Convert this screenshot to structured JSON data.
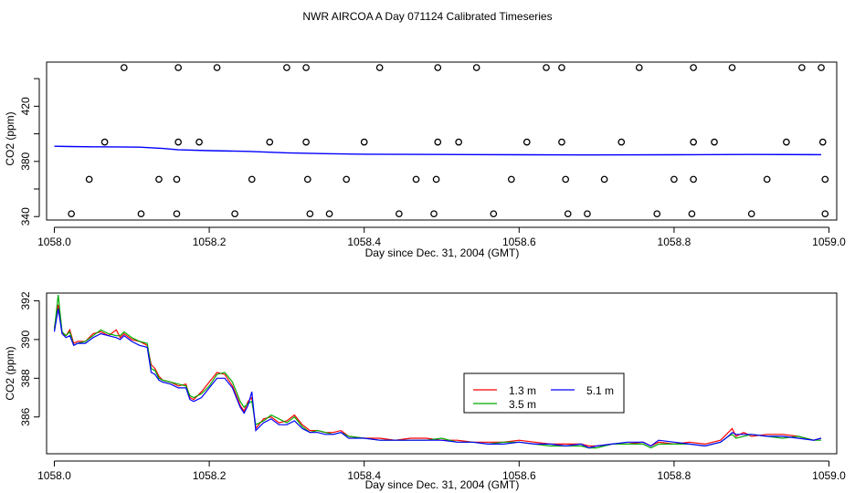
{
  "title": "NWR AIRCOA A  Day 071124  Calibrated Timeseries",
  "chart_data": [
    {
      "type": "scatter",
      "xlabel": "Day since Dec. 31, 2004 (GMT)",
      "ylabel": "CO2 (ppm)",
      "xlim": [
        1057.99,
        1059.01
      ],
      "ylim": [
        337.5,
        452
      ],
      "x_ticks": [
        1058.0,
        1058.2,
        1058.4,
        1058.6,
        1058.8,
        1059.0
      ],
      "x_tick_labels": [
        "1058.0",
        "1058.2",
        "1058.4",
        "1058.6",
        "1058.8",
        "1059.0"
      ],
      "y_ticks": [
        340,
        360,
        380,
        400,
        420,
        440
      ],
      "y_tick_labels": [
        "340",
        "",
        "380",
        "",
        "420",
        ""
      ],
      "line": {
        "color": "#0000ff",
        "x": [
          1058.0,
          1058.02,
          1058.05,
          1058.08,
          1058.11,
          1058.14,
          1058.16,
          1058.2,
          1058.25,
          1058.3,
          1058.35,
          1058.4,
          1058.5,
          1058.6,
          1058.7,
          1058.8,
          1058.9,
          1058.99
        ],
        "y": [
          391,
          390.8,
          390.6,
          390.5,
          390.3,
          389.4,
          388.4,
          387.8,
          387.3,
          386.2,
          385.6,
          385.2,
          385.0,
          384.8,
          384.7,
          384.8,
          385.0,
          384.9
        ]
      },
      "circles": {
        "x": [
          1058.09,
          1058.16,
          1058.21,
          1058.3,
          1058.325,
          1058.42,
          1058.495,
          1058.545,
          1058.635,
          1058.655,
          1058.755,
          1058.825,
          1058.875,
          1058.965,
          1058.99,
          1058.065,
          1058.16,
          1058.187,
          1058.278,
          1058.325,
          1058.4,
          1058.495,
          1058.522,
          1058.61,
          1058.655,
          1058.732,
          1058.825,
          1058.852,
          1058.945,
          1058.992,
          1058.045,
          1058.135,
          1058.158,
          1058.255,
          1058.327,
          1058.377,
          1058.467,
          1058.493,
          1058.59,
          1058.66,
          1058.71,
          1058.8,
          1058.825,
          1058.92,
          1058.995,
          1058.022,
          1058.112,
          1058.158,
          1058.233,
          1058.33,
          1058.355,
          1058.445,
          1058.49,
          1058.567,
          1058.663,
          1058.688,
          1058.778,
          1058.823,
          1058.9,
          1058.995
        ],
        "y": [
          448,
          448,
          448,
          448,
          448,
          448,
          448,
          448,
          448,
          448,
          448,
          448,
          448,
          448,
          448,
          394,
          394,
          394,
          394,
          394,
          394,
          394,
          394,
          394,
          394,
          394,
          394,
          394,
          394,
          394,
          367,
          367,
          367,
          367,
          367,
          367,
          367,
          367,
          367,
          367,
          367,
          367,
          367,
          367,
          367,
          342,
          342,
          342,
          342,
          342,
          342,
          342,
          342,
          342,
          342,
          342,
          342,
          342,
          342,
          342
        ]
      }
    },
    {
      "type": "line",
      "xlabel": "Day since Dec. 31, 2004 (GMT)",
      "ylabel": "CO2 (ppm)",
      "xlim": [
        1057.99,
        1059.01
      ],
      "ylim": [
        384.1,
        392.4
      ],
      "x_ticks": [
        1058.0,
        1058.2,
        1058.4,
        1058.6,
        1058.8,
        1059.0
      ],
      "x_tick_labels": [
        "1058.0",
        "1058.2",
        "1058.4",
        "1058.6",
        "1058.8",
        "1059.0"
      ],
      "y_ticks": [
        386,
        388,
        390,
        392
      ],
      "y_tick_labels": [
        "386",
        "388",
        "390",
        "392"
      ],
      "series": [
        {
          "name": "1.3 m",
          "color": "#ff0000",
          "x": [
            1058.0,
            1058.005,
            1058.01,
            1058.015,
            1058.02,
            1058.025,
            1058.03,
            1058.04,
            1058.05,
            1058.06,
            1058.07,
            1058.08,
            1058.085,
            1058.09,
            1058.1,
            1058.11,
            1058.12,
            1058.125,
            1058.13,
            1058.135,
            1058.14,
            1058.15,
            1058.16,
            1058.17,
            1058.175,
            1058.18,
            1058.19,
            1058.2,
            1058.21,
            1058.22,
            1058.23,
            1058.24,
            1058.245,
            1058.25,
            1058.255,
            1058.26,
            1058.27,
            1058.28,
            1058.29,
            1058.3,
            1058.31,
            1058.32,
            1058.33,
            1058.34,
            1058.35,
            1058.36,
            1058.37,
            1058.38,
            1058.4,
            1058.42,
            1058.44,
            1058.46,
            1058.48,
            1058.5,
            1058.52,
            1058.54,
            1058.56,
            1058.58,
            1058.6,
            1058.62,
            1058.64,
            1058.66,
            1058.68,
            1058.69,
            1058.7,
            1058.72,
            1058.74,
            1058.76,
            1058.77,
            1058.78,
            1058.8,
            1058.82,
            1058.84,
            1058.86,
            1058.87,
            1058.875,
            1058.88,
            1058.89,
            1058.9,
            1058.92,
            1058.94,
            1058.96,
            1058.98,
            1058.99
          ],
          "y": [
            390.6,
            391.8,
            390.3,
            390.2,
            390.5,
            389.8,
            389.9,
            389.9,
            390.3,
            390.4,
            390.2,
            390.5,
            390.1,
            390.3,
            390.0,
            389.9,
            389.7,
            388.7,
            388.5,
            388.1,
            387.9,
            387.8,
            387.6,
            387.7,
            387.0,
            386.9,
            387.3,
            387.8,
            388.3,
            388.2,
            387.6,
            386.6,
            386.3,
            386.8,
            387.0,
            385.4,
            385.9,
            386.0,
            385.7,
            385.8,
            386.1,
            385.6,
            385.3,
            385.3,
            385.2,
            385.2,
            385.3,
            385.0,
            384.9,
            384.9,
            384.8,
            384.9,
            384.9,
            384.8,
            384.8,
            384.7,
            384.7,
            384.7,
            384.8,
            384.7,
            384.6,
            384.6,
            384.6,
            384.5,
            384.5,
            384.6,
            384.6,
            384.7,
            384.5,
            384.7,
            384.6,
            384.7,
            384.6,
            384.8,
            385.2,
            385.4,
            385.0,
            385.2,
            385.0,
            385.1,
            385.1,
            385.0,
            384.8,
            384.9
          ]
        },
        {
          "name": "3.5 m",
          "color": "#00aa00",
          "x": [
            1058.0,
            1058.005,
            1058.01,
            1058.015,
            1058.02,
            1058.025,
            1058.03,
            1058.04,
            1058.05,
            1058.06,
            1058.07,
            1058.08,
            1058.085,
            1058.09,
            1058.1,
            1058.11,
            1058.12,
            1058.125,
            1058.13,
            1058.135,
            1058.14,
            1058.15,
            1058.16,
            1058.17,
            1058.175,
            1058.18,
            1058.19,
            1058.2,
            1058.21,
            1058.22,
            1058.23,
            1058.24,
            1058.245,
            1058.25,
            1058.255,
            1058.26,
            1058.27,
            1058.28,
            1058.29,
            1058.3,
            1058.31,
            1058.32,
            1058.33,
            1058.34,
            1058.35,
            1058.36,
            1058.37,
            1058.38,
            1058.4,
            1058.42,
            1058.44,
            1058.46,
            1058.48,
            1058.5,
            1058.52,
            1058.54,
            1058.56,
            1058.58,
            1058.6,
            1058.62,
            1058.64,
            1058.66,
            1058.68,
            1058.69,
            1058.7,
            1058.72,
            1058.74,
            1058.76,
            1058.77,
            1058.78,
            1058.8,
            1058.82,
            1058.84,
            1058.86,
            1058.87,
            1058.875,
            1058.88,
            1058.89,
            1058.9,
            1058.92,
            1058.94,
            1058.96,
            1058.98,
            1058.99
          ],
          "y": [
            390.5,
            392.3,
            390.4,
            390.2,
            390.4,
            389.7,
            389.8,
            389.9,
            390.2,
            390.5,
            390.3,
            390.2,
            390.2,
            390.4,
            390.1,
            389.9,
            389.8,
            388.5,
            388.4,
            388.0,
            387.9,
            387.8,
            387.7,
            387.6,
            387.1,
            387.0,
            387.2,
            387.6,
            388.2,
            388.3,
            387.8,
            386.8,
            386.5,
            386.7,
            386.8,
            385.6,
            385.8,
            386.1,
            385.9,
            385.7,
            386.0,
            385.5,
            385.2,
            385.3,
            385.2,
            385.1,
            385.2,
            385.0,
            384.9,
            384.8,
            384.8,
            384.8,
            384.8,
            384.9,
            384.7,
            384.7,
            384.6,
            384.7,
            384.7,
            384.6,
            384.5,
            384.5,
            384.5,
            384.4,
            384.4,
            384.6,
            384.6,
            384.6,
            384.4,
            384.6,
            384.6,
            384.6,
            384.5,
            384.7,
            385.0,
            385.1,
            384.9,
            385.0,
            385.1,
            385.0,
            384.9,
            385.0,
            384.8,
            384.8
          ]
        },
        {
          "name": "5.1 m",
          "color": "#0000ff",
          "x": [
            1058.0,
            1058.005,
            1058.01,
            1058.015,
            1058.02,
            1058.025,
            1058.03,
            1058.04,
            1058.05,
            1058.06,
            1058.07,
            1058.08,
            1058.085,
            1058.09,
            1058.1,
            1058.11,
            1058.12,
            1058.125,
            1058.13,
            1058.135,
            1058.14,
            1058.15,
            1058.16,
            1058.17,
            1058.175,
            1058.18,
            1058.19,
            1058.2,
            1058.21,
            1058.22,
            1058.23,
            1058.24,
            1058.245,
            1058.25,
            1058.255,
            1058.26,
            1058.27,
            1058.28,
            1058.29,
            1058.3,
            1058.31,
            1058.32,
            1058.33,
            1058.34,
            1058.35,
            1058.36,
            1058.37,
            1058.38,
            1058.4,
            1058.42,
            1058.44,
            1058.46,
            1058.48,
            1058.5,
            1058.52,
            1058.54,
            1058.56,
            1058.58,
            1058.6,
            1058.62,
            1058.64,
            1058.66,
            1058.68,
            1058.69,
            1058.7,
            1058.72,
            1058.74,
            1058.76,
            1058.77,
            1058.78,
            1058.8,
            1058.82,
            1058.84,
            1058.86,
            1058.87,
            1058.875,
            1058.88,
            1058.89,
            1058.9,
            1058.92,
            1058.94,
            1058.96,
            1058.98,
            1058.99
          ],
          "y": [
            390.4,
            391.6,
            390.3,
            390.1,
            390.2,
            389.7,
            389.8,
            389.8,
            390.1,
            390.3,
            390.2,
            390.1,
            390.0,
            390.2,
            389.9,
            389.7,
            389.6,
            388.3,
            388.2,
            387.9,
            387.8,
            387.7,
            387.5,
            387.5,
            386.9,
            386.8,
            387.0,
            387.5,
            388.0,
            388.0,
            387.5,
            386.5,
            386.2,
            386.6,
            387.3,
            385.3,
            385.7,
            385.9,
            385.6,
            385.6,
            385.8,
            385.4,
            385.2,
            385.2,
            385.1,
            385.1,
            385.2,
            384.9,
            384.9,
            384.8,
            384.8,
            384.8,
            384.8,
            384.8,
            384.7,
            384.7,
            384.6,
            384.6,
            384.7,
            384.6,
            384.6,
            384.5,
            384.6,
            384.4,
            384.5,
            384.6,
            384.7,
            384.7,
            384.5,
            384.8,
            384.7,
            384.6,
            384.5,
            384.7,
            385.0,
            385.2,
            385.1,
            385.1,
            385.1,
            385.0,
            385.0,
            384.9,
            384.8,
            384.9
          ]
        }
      ]
    }
  ]
}
